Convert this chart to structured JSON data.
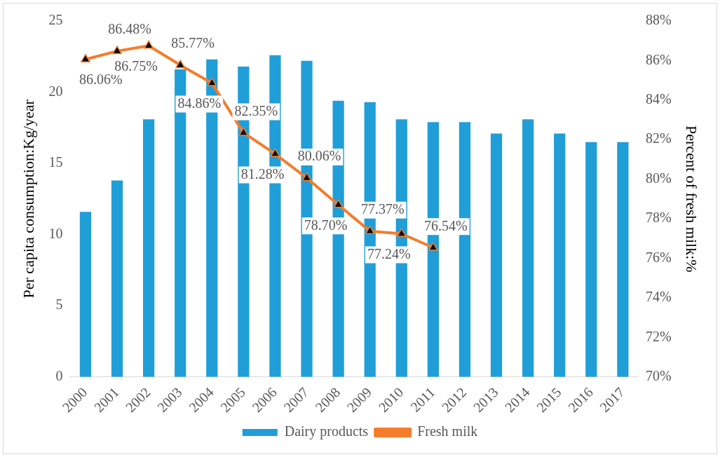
{
  "chart_data": {
    "type": "bar",
    "categories": [
      "2000",
      "2001",
      "2002",
      "2003",
      "2004",
      "2005",
      "2006",
      "2007",
      "2008",
      "2009",
      "2010",
      "2011",
      "2012",
      "2013",
      "2014",
      "2015",
      "2016",
      "2017"
    ],
    "ylabel": "Per capita consumption:Kg/year",
    "y2label": "Percent of fresh milk:%",
    "ylim": [
      0,
      25
    ],
    "yticks": [
      0,
      5,
      10,
      15,
      20,
      25
    ],
    "y2lim": [
      70,
      88
    ],
    "y2ticks": [
      {
        "value": 70,
        "label": "70%"
      },
      {
        "value": 72,
        "label": "72%"
      },
      {
        "value": 74,
        "label": "74%"
      },
      {
        "value": 76,
        "label": "76%"
      },
      {
        "value": 78,
        "label": "78%"
      },
      {
        "value": 80,
        "label": "80%"
      },
      {
        "value": 82,
        "label": "82%"
      },
      {
        "value": 84,
        "label": "84%"
      },
      {
        "value": 86,
        "label": "86%"
      },
      {
        "value": 88,
        "label": "88%"
      }
    ],
    "series": [
      {
        "name": "Dairy products",
        "color": "#1f9ed8",
        "values": [
          11.6,
          13.8,
          18.1,
          21.6,
          22.3,
          21.8,
          22.6,
          22.2,
          19.4,
          19.3,
          18.1,
          17.9,
          17.9,
          17.1,
          18.1,
          17.1,
          16.5,
          16.5
        ]
      },
      {
        "name": "Fresh milk",
        "type": "line",
        "axis": "y2",
        "color": "#f57c2a",
        "marker": "triangle",
        "values": [
          86.06,
          86.48,
          86.75,
          85.77,
          84.86,
          82.35,
          81.28,
          80.06,
          78.7,
          77.37,
          77.24,
          76.54,
          null,
          null,
          null,
          null,
          null,
          null
        ],
        "value_labels": [
          "86.06%",
          "86.48%",
          "86.75%",
          "85.77%",
          "84.86%",
          "82.35%",
          "81.28%",
          "80.06%",
          "78.70%",
          "77.37%",
          "77.24%",
          "76.54%",
          null,
          null,
          null,
          null,
          null,
          null
        ]
      }
    ],
    "legend": "bottom",
    "grid": false
  }
}
